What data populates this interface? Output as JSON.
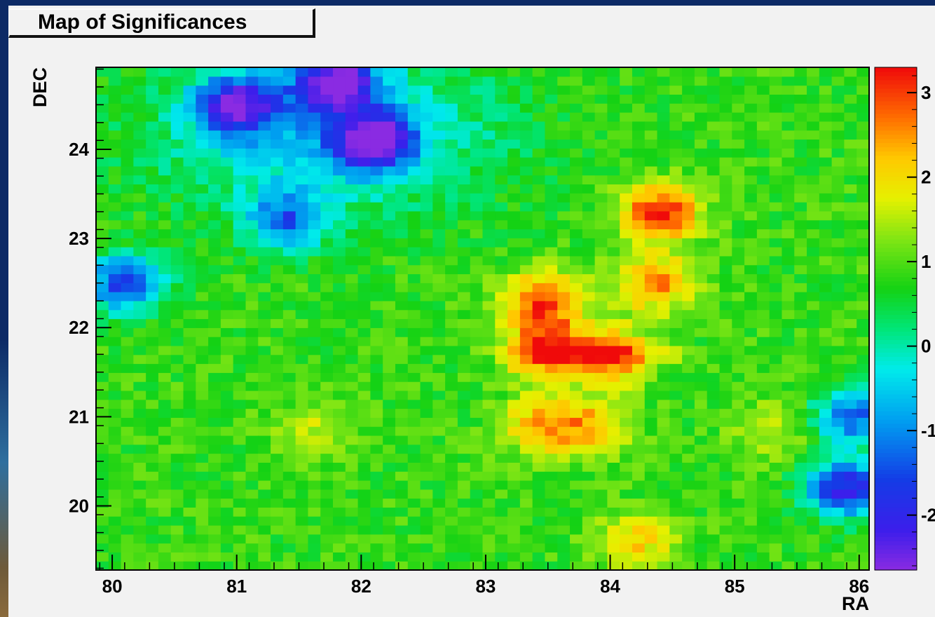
{
  "title": "Map of Significances",
  "chart_data": {
    "type": "heatmap",
    "title": "Map of Significances",
    "xlabel": "RA",
    "ylabel": "DEC",
    "xlim": [
      79.87,
      86.08
    ],
    "ylim": [
      19.28,
      24.92
    ],
    "x_ticks": [
      80,
      81,
      82,
      83,
      84,
      85,
      86
    ],
    "y_ticks": [
      20,
      21,
      22,
      23,
      24
    ],
    "zlim": [
      -2.65,
      3.3
    ],
    "colorbar_ticks": [
      {
        "value": 3,
        "label": "3"
      },
      {
        "value": 2,
        "label": "2"
      },
      {
        "value": 1,
        "label": "1"
      },
      {
        "value": 0,
        "label": "0"
      },
      {
        "value": -1,
        "label": "-1"
      },
      {
        "value": -2,
        "label": "-2"
      }
    ],
    "grid": false,
    "bins": {
      "nx": 62,
      "ny": 56
    },
    "features": [
      {
        "ra": 81.8,
        "dec": 24.75,
        "significance": -2.4
      },
      {
        "ra": 82.1,
        "dec": 24.1,
        "significance": -2.2
      },
      {
        "ra": 81.0,
        "dec": 24.5,
        "significance": -1.9
      },
      {
        "ra": 81.4,
        "dec": 23.2,
        "significance": -1.1
      },
      {
        "ra": 80.1,
        "dec": 22.5,
        "significance": -1.6
      },
      {
        "ra": 85.9,
        "dec": 20.2,
        "significance": -2.1
      },
      {
        "ra": 85.95,
        "dec": 21.0,
        "significance": -1.3
      },
      {
        "ra": 84.4,
        "dec": 23.3,
        "significance": 3.2
      },
      {
        "ra": 84.35,
        "dec": 22.5,
        "significance": 2.6
      },
      {
        "ra": 83.45,
        "dec": 22.3,
        "significance": 3.0
      },
      {
        "ra": 83.5,
        "dec": 21.75,
        "significance": 3.0
      },
      {
        "ra": 84.0,
        "dec": 21.7,
        "significance": 2.7
      },
      {
        "ra": 83.45,
        "dec": 20.9,
        "significance": 2.3
      },
      {
        "ra": 83.85,
        "dec": 20.9,
        "significance": 2.1
      },
      {
        "ra": 84.2,
        "dec": 19.6,
        "significance": 2.1
      },
      {
        "ra": 81.6,
        "dec": 20.85,
        "significance": 1.6
      },
      {
        "ra": 85.3,
        "dec": 20.85,
        "significance": 1.6
      }
    ]
  }
}
